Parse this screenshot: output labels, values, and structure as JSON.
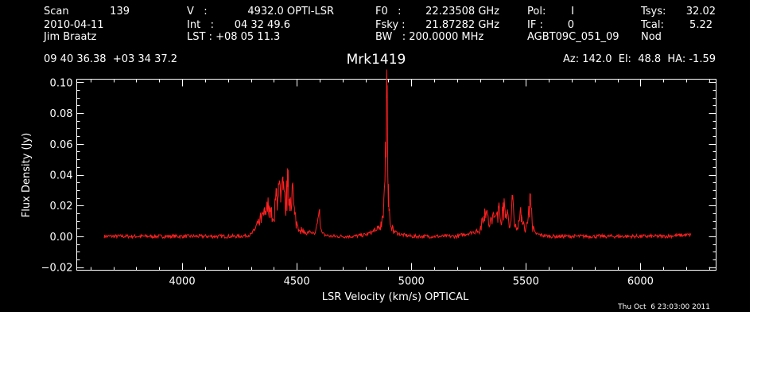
{
  "header": {
    "row1": {
      "scan_label": "Scan",
      "scan_value": "139",
      "v_label": "V   :",
      "v_value": "4932.0 OPTI-LSR",
      "f0_label": "F0   :",
      "f0_value": "22.23508 GHz",
      "pol_label": "Pol:",
      "pol_value": "I",
      "tsys_label": "Tsys:",
      "tsys_value": "32.02"
    },
    "row2": {
      "date": "2010-04-11",
      "int_label": "Int   :",
      "int_value": "04 32 49.6",
      "fsky_label": "Fsky :",
      "fsky_value": "21.87282 GHz",
      "if_label": "IF :",
      "if_value": "0",
      "tcal_label": "Tcal:",
      "tcal_value": "5.22"
    },
    "row3": {
      "observer": "Jim Braatz",
      "lst_label": "LST : +08 05 11.3",
      "bw_label": "BW   : 200.0000 MHz",
      "project": "AGBT09C_051_09",
      "procedure": "Nod"
    },
    "coords": "09 40 36.38  +03 34 37.2",
    "source": "Mrk1419",
    "pointing": "Az: 142.0  El:  48.8  HA: -1.59"
  },
  "timestamp": "Thu Oct  6 23:03:00 2011",
  "colors": {
    "background": "#000000",
    "axes": "#ffffff",
    "series": "#ff2020"
  },
  "chart_data": {
    "type": "line",
    "title": "Mrk1419",
    "xlabel": "LSR Velocity (km/s) OPTICAL",
    "ylabel": "Flux Density (Jy)",
    "xlim": [
      3540,
      6330
    ],
    "ylim": [
      -0.022,
      0.102
    ],
    "xticks": [
      4000,
      4500,
      5000,
      5500,
      6000
    ],
    "yticks": [
      -0.02,
      0.0,
      0.02,
      0.04,
      0.06,
      0.08,
      0.1
    ],
    "ytick_labels": [
      "−0.02",
      "0.00",
      "0.02",
      "0.04",
      "0.06",
      "0.08",
      "0.10"
    ],
    "grid": false,
    "legend": "none",
    "series": [
      {
        "x": [
          3660,
          3750,
          3850,
          3950,
          4050,
          4150,
          4250,
          4300,
          4320,
          4340,
          4360,
          4380,
          4400,
          4410,
          4420,
          4430,
          4440,
          4450,
          4460,
          4470,
          4480,
          4490,
          4500,
          4520,
          4540,
          4560,
          4580,
          4600,
          4610,
          4620,
          4650,
          4700,
          4750,
          4800,
          4850,
          4870,
          4880,
          4890,
          4895,
          4900,
          4905,
          4910,
          4920,
          4940,
          4960,
          5000,
          5100,
          5200,
          5300,
          5320,
          5340,
          5360,
          5380,
          5390,
          5400,
          5410,
          5420,
          5430,
          5440,
          5450,
          5460,
          5480,
          5500,
          5520,
          5530,
          5540,
          5560,
          5600,
          5700,
          5800,
          5900,
          6000,
          6100,
          6220
        ],
        "y": [
          0.0,
          0.0,
          0.0,
          0.0,
          0.0,
          0.0,
          0.0,
          0.001,
          0.005,
          0.01,
          0.014,
          0.02,
          0.008,
          0.026,
          0.034,
          0.022,
          0.03,
          0.018,
          0.032,
          0.024,
          0.033,
          0.014,
          0.008,
          0.004,
          0.002,
          0.003,
          0.001,
          0.014,
          0.002,
          0.001,
          0.0,
          0.0,
          0.0,
          0.001,
          0.004,
          0.008,
          0.024,
          0.052,
          0.098,
          0.034,
          0.016,
          0.006,
          0.004,
          0.002,
          0.001,
          0.0,
          0.0,
          0.0,
          0.004,
          0.018,
          0.008,
          0.012,
          0.018,
          0.01,
          0.022,
          0.012,
          0.016,
          0.006,
          0.024,
          0.01,
          0.005,
          0.014,
          0.004,
          0.024,
          0.006,
          0.002,
          0.001,
          0.0,
          0.0,
          0.0,
          0.0,
          0.0,
          0.0,
          0.001
        ]
      }
    ]
  }
}
